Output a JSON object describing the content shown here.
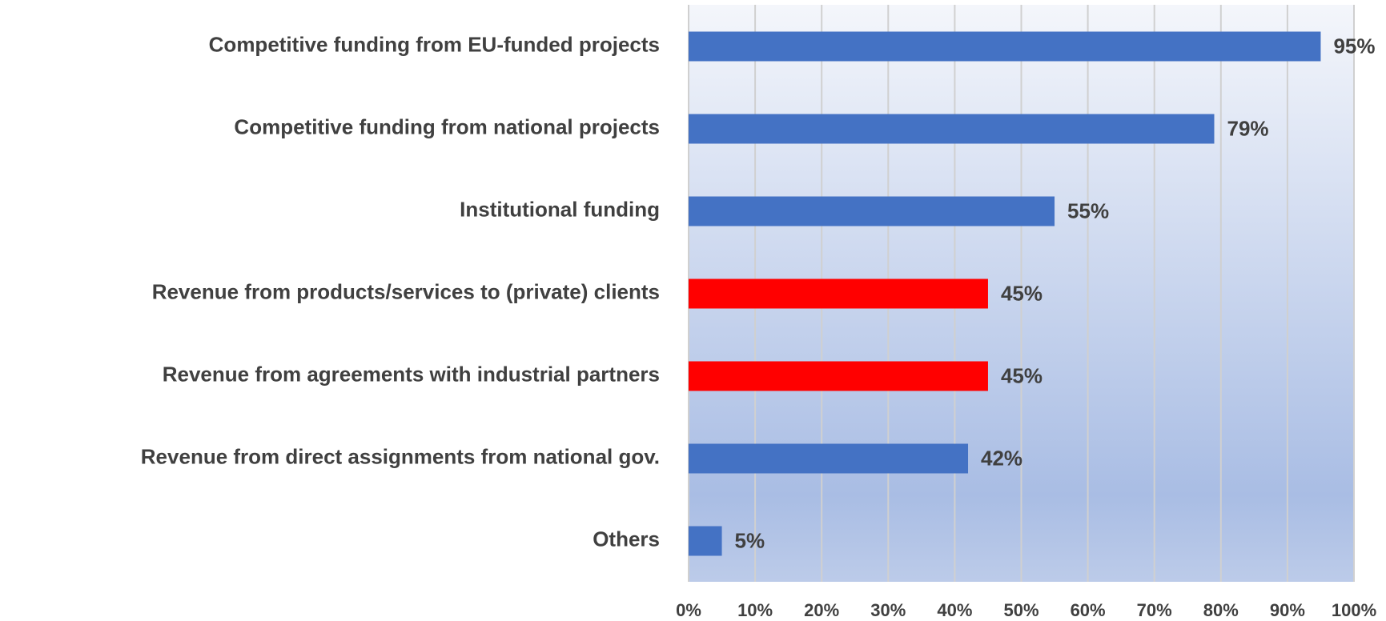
{
  "chart_data": {
    "type": "barh",
    "categories": [
      "Competitive funding from EU-funded projects",
      "Competitive funding from national projects",
      "Institutional funding",
      "Revenue from products/services to (private) clients",
      "Revenue from agreements with industrial partners",
      "Revenue from direct assignments from national gov.",
      "Others"
    ],
    "values": [
      95,
      79,
      55,
      45,
      45,
      42,
      5
    ],
    "value_labels": [
      "95%",
      "79%",
      "55%",
      "45%",
      "45%",
      "42%",
      "5%"
    ],
    "colors": [
      "#4472c4",
      "#4472c4",
      "#4472c4",
      "#ff0000",
      "#ff0000",
      "#4472c4",
      "#4472c4"
    ],
    "xlim": [
      0,
      100
    ],
    "xticks": [
      {
        "value": 0,
        "label": "0%"
      },
      {
        "value": 10,
        "label": "10%"
      },
      {
        "value": 20,
        "label": "20%"
      },
      {
        "value": 30,
        "label": "30%"
      },
      {
        "value": 40,
        "label": "40%"
      },
      {
        "value": 50,
        "label": "50%"
      },
      {
        "value": 60,
        "label": "60%"
      },
      {
        "value": 70,
        "label": "70%"
      },
      {
        "value": 80,
        "label": "80%"
      },
      {
        "value": 90,
        "label": "90%"
      },
      {
        "value": 100,
        "label": "100%"
      }
    ],
    "grid": true
  }
}
